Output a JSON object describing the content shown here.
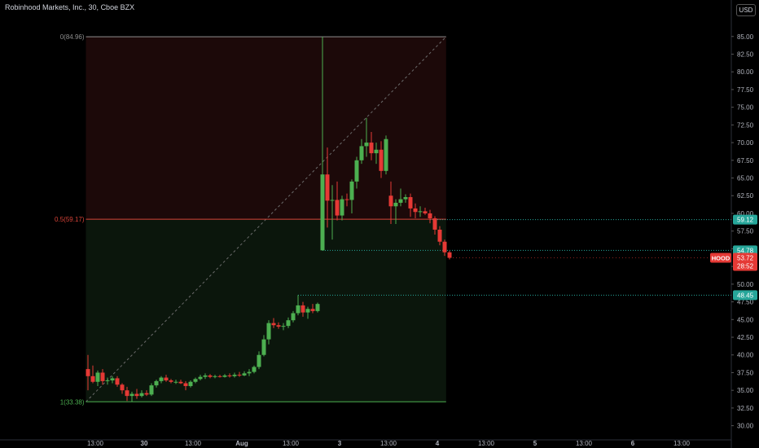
{
  "header": {
    "title": "Robinhood Markets, Inc., 30, Cboe BZX",
    "currency": "USD"
  },
  "colors": {
    "background": "#000000",
    "up": "#4caf50",
    "down": "#e53935",
    "fib_upper_fill": "#1c0909",
    "fib_lower_fill": "#0b160c",
    "fib_top_line": "#8f8f8f",
    "fib_mid_line": "#d84338",
    "fib_bottom_line": "#4caf50",
    "axis_text": "#b2b5be",
    "dotted_level": "#26a69a"
  },
  "chart_data": {
    "type": "candlestick",
    "symbol": "HOOD",
    "interval": "30",
    "ylim": [
      28.0,
      89.0
    ],
    "y_ticks": [
      "30.00",
      "32.50",
      "35.00",
      "37.50",
      "40.00",
      "42.50",
      "45.00",
      "47.50",
      "50.00",
      "52.50",
      "55.00",
      "57.50",
      "60.00",
      "62.50",
      "65.00",
      "67.50",
      "70.00",
      "72.50",
      "75.00",
      "77.50",
      "80.00",
      "82.50",
      "85.00"
    ],
    "x_ticks": [
      {
        "label": "13:00",
        "bar": 1.5
      },
      {
        "label": "30",
        "bar": 11.5
      },
      {
        "label": "13:00",
        "bar": 21.5
      },
      {
        "label": "Aug",
        "bar": 31.5
      },
      {
        "label": "13:00",
        "bar": 41.5
      },
      {
        "label": "3",
        "bar": 51.5
      },
      {
        "label": "13:00",
        "bar": 61.5
      },
      {
        "label": "4",
        "bar": 71.5
      },
      {
        "label": "13:00",
        "bar": 81.5
      },
      {
        "label": "5",
        "bar": 91.5
      },
      {
        "label": "13:00",
        "bar": 101.5
      },
      {
        "label": "6",
        "bar": 111.5
      },
      {
        "label": "13:00",
        "bar": 121.5
      }
    ],
    "candles": [
      {
        "i": 0,
        "o": 38.0,
        "h": 40.0,
        "l": 35.0,
        "c": 37.0
      },
      {
        "i": 1,
        "o": 37.0,
        "h": 38.5,
        "l": 36.0,
        "c": 36.2
      },
      {
        "i": 2,
        "o": 36.2,
        "h": 37.8,
        "l": 35.6,
        "c": 37.5
      },
      {
        "i": 3,
        "o": 37.5,
        "h": 38.0,
        "l": 35.8,
        "c": 36.3
      },
      {
        "i": 4,
        "o": 36.3,
        "h": 36.8,
        "l": 35.8,
        "c": 36.4
      },
      {
        "i": 5,
        "o": 36.4,
        "h": 37.0,
        "l": 36.0,
        "c": 36.7
      },
      {
        "i": 6,
        "o": 36.7,
        "h": 37.0,
        "l": 35.5,
        "c": 35.8
      },
      {
        "i": 7,
        "o": 35.8,
        "h": 36.0,
        "l": 34.5,
        "c": 35.0
      },
      {
        "i": 8,
        "o": 35.0,
        "h": 35.5,
        "l": 33.5,
        "c": 34.2
      },
      {
        "i": 9,
        "o": 34.2,
        "h": 34.8,
        "l": 33.4,
        "c": 34.5
      },
      {
        "i": 10,
        "o": 34.5,
        "h": 35.2,
        "l": 33.8,
        "c": 34.2
      },
      {
        "i": 11,
        "o": 34.2,
        "h": 35.0,
        "l": 34.0,
        "c": 34.6
      },
      {
        "i": 12,
        "o": 34.6,
        "h": 35.0,
        "l": 34.2,
        "c": 34.4
      },
      {
        "i": 13,
        "o": 34.4,
        "h": 36.0,
        "l": 34.2,
        "c": 35.7
      },
      {
        "i": 14,
        "o": 35.7,
        "h": 36.5,
        "l": 35.4,
        "c": 36.3
      },
      {
        "i": 15,
        "o": 36.3,
        "h": 37.0,
        "l": 36.0,
        "c": 36.8
      },
      {
        "i": 16,
        "o": 36.8,
        "h": 37.2,
        "l": 36.2,
        "c": 36.4
      },
      {
        "i": 17,
        "o": 36.4,
        "h": 36.6,
        "l": 36.0,
        "c": 36.2
      },
      {
        "i": 18,
        "o": 36.2,
        "h": 36.5,
        "l": 35.9,
        "c": 36.2
      },
      {
        "i": 19,
        "o": 36.2,
        "h": 36.5,
        "l": 35.9,
        "c": 36.0
      },
      {
        "i": 20,
        "o": 36.0,
        "h": 36.3,
        "l": 35.0,
        "c": 35.6
      },
      {
        "i": 21,
        "o": 35.6,
        "h": 36.4,
        "l": 35.4,
        "c": 36.2
      },
      {
        "i": 22,
        "o": 36.2,
        "h": 36.8,
        "l": 36.0,
        "c": 36.6
      },
      {
        "i": 23,
        "o": 36.6,
        "h": 37.2,
        "l": 36.4,
        "c": 36.9
      },
      {
        "i": 24,
        "o": 36.9,
        "h": 37.4,
        "l": 36.6,
        "c": 37.1
      },
      {
        "i": 25,
        "o": 37.1,
        "h": 37.3,
        "l": 36.7,
        "c": 36.9
      },
      {
        "i": 26,
        "o": 36.9,
        "h": 37.2,
        "l": 36.7,
        "c": 37.0
      },
      {
        "i": 27,
        "o": 37.0,
        "h": 37.2,
        "l": 36.8,
        "c": 36.9
      },
      {
        "i": 28,
        "o": 36.9,
        "h": 37.3,
        "l": 36.8,
        "c": 37.1
      },
      {
        "i": 29,
        "o": 37.1,
        "h": 37.4,
        "l": 36.8,
        "c": 37.0
      },
      {
        "i": 30,
        "o": 37.0,
        "h": 37.5,
        "l": 36.8,
        "c": 37.2
      },
      {
        "i": 31,
        "o": 37.2,
        "h": 37.6,
        "l": 36.9,
        "c": 37.1
      },
      {
        "i": 32,
        "o": 37.1,
        "h": 37.7,
        "l": 37.0,
        "c": 37.4
      },
      {
        "i": 33,
        "o": 37.4,
        "h": 38.0,
        "l": 37.0,
        "c": 37.6
      },
      {
        "i": 34,
        "o": 37.6,
        "h": 38.5,
        "l": 37.4,
        "c": 38.3
      },
      {
        "i": 35,
        "o": 38.3,
        "h": 40.5,
        "l": 38.0,
        "c": 40.0
      },
      {
        "i": 36,
        "o": 40.0,
        "h": 42.8,
        "l": 39.8,
        "c": 42.2
      },
      {
        "i": 37,
        "o": 42.2,
        "h": 44.9,
        "l": 41.5,
        "c": 44.5
      },
      {
        "i": 38,
        "o": 44.5,
        "h": 45.2,
        "l": 43.8,
        "c": 44.2
      },
      {
        "i": 39,
        "o": 44.2,
        "h": 44.6,
        "l": 43.7,
        "c": 44.0
      },
      {
        "i": 40,
        "o": 44.0,
        "h": 44.5,
        "l": 43.5,
        "c": 44.1
      },
      {
        "i": 41,
        "o": 44.1,
        "h": 45.3,
        "l": 43.8,
        "c": 44.9
      },
      {
        "i": 42,
        "o": 44.9,
        "h": 46.2,
        "l": 44.6,
        "c": 45.9
      },
      {
        "i": 43,
        "o": 45.9,
        "h": 48.45,
        "l": 45.6,
        "c": 47.0
      },
      {
        "i": 44,
        "o": 47.0,
        "h": 47.5,
        "l": 45.4,
        "c": 46.0
      },
      {
        "i": 45,
        "o": 46.0,
        "h": 46.8,
        "l": 45.1,
        "c": 46.5
      },
      {
        "i": 46,
        "o": 46.5,
        "h": 47.2,
        "l": 45.9,
        "c": 46.2
      },
      {
        "i": 47,
        "o": 46.2,
        "h": 47.4,
        "l": 46.0,
        "c": 47.2
      },
      {
        "i": 48,
        "o": 54.78,
        "h": 84.96,
        "l": 54.78,
        "c": 65.5
      },
      {
        "i": 49,
        "o": 65.5,
        "h": 69.3,
        "l": 58.0,
        "c": 61.8
      },
      {
        "i": 50,
        "o": 61.8,
        "h": 64.0,
        "l": 56.3,
        "c": 61.9
      },
      {
        "i": 51,
        "o": 61.9,
        "h": 64.5,
        "l": 59.0,
        "c": 59.7
      },
      {
        "i": 52,
        "o": 59.7,
        "h": 62.5,
        "l": 59.0,
        "c": 62.0
      },
      {
        "i": 53,
        "o": 62.0,
        "h": 62.8,
        "l": 61.0,
        "c": 61.9
      },
      {
        "i": 54,
        "o": 61.9,
        "h": 64.8,
        "l": 60.0,
        "c": 64.5
      },
      {
        "i": 55,
        "o": 64.5,
        "h": 68.0,
        "l": 63.5,
        "c": 67.5
      },
      {
        "i": 56,
        "o": 67.5,
        "h": 70.5,
        "l": 67.0,
        "c": 69.5
      },
      {
        "i": 57,
        "o": 69.5,
        "h": 73.5,
        "l": 68.0,
        "c": 70.0
      },
      {
        "i": 58,
        "o": 70.0,
        "h": 71.5,
        "l": 67.5,
        "c": 68.5
      },
      {
        "i": 59,
        "o": 68.5,
        "h": 70.0,
        "l": 67.0,
        "c": 69.0
      },
      {
        "i": 60,
        "o": 69.0,
        "h": 70.2,
        "l": 65.0,
        "c": 66.0
      },
      {
        "i": 61,
        "o": 66.0,
        "h": 71.0,
        "l": 65.5,
        "c": 70.5
      },
      {
        "i": 62,
        "o": 62.5,
        "h": 64.5,
        "l": 58.5,
        "c": 61.0
      },
      {
        "i": 63,
        "o": 61.0,
        "h": 62.0,
        "l": 58.5,
        "c": 61.5
      },
      {
        "i": 64,
        "o": 61.5,
        "h": 63.5,
        "l": 61.0,
        "c": 62.0
      },
      {
        "i": 65,
        "o": 62.0,
        "h": 62.7,
        "l": 61.5,
        "c": 62.3
      },
      {
        "i": 66,
        "o": 62.3,
        "h": 62.8,
        "l": 59.5,
        "c": 60.7
      },
      {
        "i": 67,
        "o": 60.7,
        "h": 61.4,
        "l": 59.3,
        "c": 60.2
      },
      {
        "i": 68,
        "o": 60.2,
        "h": 61.0,
        "l": 59.5,
        "c": 60.3
      },
      {
        "i": 69,
        "o": 60.3,
        "h": 60.8,
        "l": 59.8,
        "c": 60.0
      },
      {
        "i": 70,
        "o": 60.0,
        "h": 60.5,
        "l": 58.6,
        "c": 59.3
      },
      {
        "i": 71,
        "o": 59.3,
        "h": 59.6,
        "l": 57.0,
        "c": 57.7
      },
      {
        "i": 72,
        "o": 57.7,
        "h": 58.2,
        "l": 55.5,
        "c": 56.0
      },
      {
        "i": 73,
        "o": 56.0,
        "h": 56.3,
        "l": 54.0,
        "c": 54.5
      },
      {
        "i": 74,
        "o": 54.5,
        "h": 54.7,
        "l": 53.5,
        "c": 53.72
      }
    ],
    "fibonacci": {
      "levels": [
        {
          "label": "0(84.96)",
          "value": 84.96,
          "role": "top"
        },
        {
          "label": "0.5(59.17)",
          "value": 59.17,
          "role": "mid"
        },
        {
          "label": "1(33.38)",
          "value": 33.38,
          "role": "bottom"
        }
      ],
      "start_bar": -0.5,
      "end_bar": 73.3
    },
    "price_labels": [
      {
        "text": "59.12",
        "value": 59.12,
        "color": "#26a69a",
        "line_from_bar": 70.0
      },
      {
        "text": "54.78",
        "value": 54.78,
        "color": "#26a69a",
        "line_from_bar": 48.0
      },
      {
        "text": "48.45",
        "value": 48.45,
        "color": "#26a69a",
        "line_from_bar": 43.0
      }
    ],
    "last_price": {
      "symbol": "HOOD",
      "price": "53.72",
      "countdown": "28:52",
      "value": 53.72,
      "color": "#e53935"
    }
  }
}
